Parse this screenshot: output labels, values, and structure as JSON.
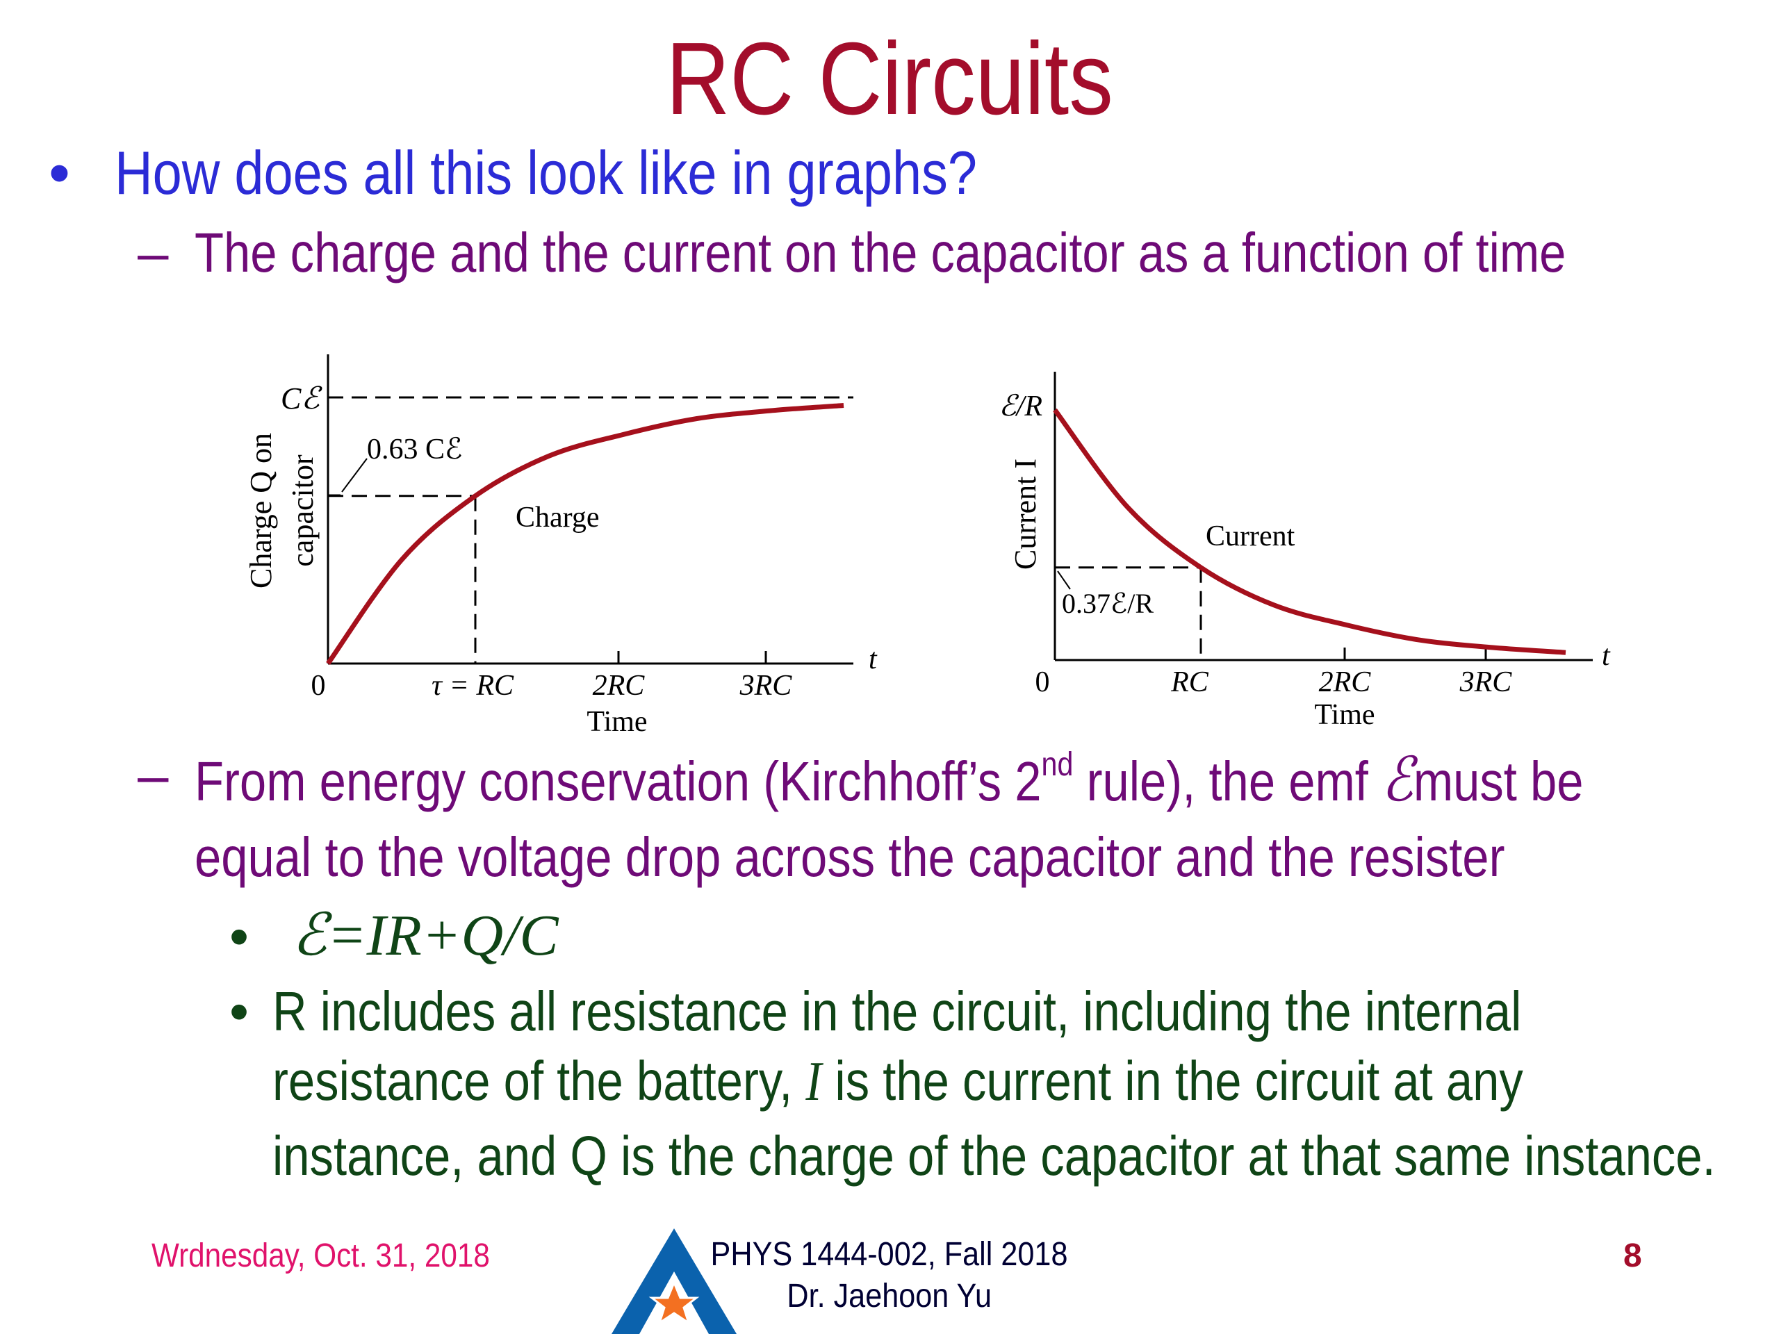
{
  "title": "RC Circuits",
  "bullets": {
    "main": "How does all this look like in graphs?",
    "sub1": "The charge and the current on the capacitor as a function of time",
    "sub2_line1_a": "From energy conservation (Kirchhoff’s 2",
    "sub2_sup": "nd",
    "sub2_line1_b": " rule), the emf ",
    "emf_symbol": "ℰ",
    "sub2_line1_c": "must be",
    "sub2_line2": "equal to the voltage drop across the capacitor and the resister",
    "equation": "ℰ=IR+Q/C",
    "r_line1": "R includes all resistance in the circuit, including the internal",
    "r_line2_a": "resistance of the battery, ",
    "r_line2_i": "I",
    "r_line2_b": " is the current in the circuit at any",
    "r_line3": "instance, and Q is the charge of the capacitor at that same instance."
  },
  "chart_data": [
    {
      "type": "line",
      "series": [
        {
          "name": "Charge",
          "x": [
            0,
            0.5,
            1,
            1.5,
            2,
            2.5,
            3,
            3.5
          ],
          "y": [
            0,
            0.39,
            0.63,
            0.78,
            0.86,
            0.92,
            0.95,
            0.97
          ]
        }
      ],
      "xlabel": "Time",
      "ylabel_line1": "Charge Q on",
      "ylabel_line2": "capacitor",
      "axis_end_label": "t",
      "xticks": [
        "0",
        "τ = RC",
        "2RC",
        "3RC"
      ],
      "yticks": [
        "CℰE",
        "0.63 Cℰ"
      ],
      "annotation": "0.63 Cℰ",
      "asymptote": 1,
      "marker": {
        "x": 1,
        "y": 0.63
      }
    },
    {
      "type": "line",
      "series": [
        {
          "name": "Current",
          "x": [
            0,
            0.5,
            1,
            1.5,
            2,
            2.5,
            3,
            3.5
          ],
          "y": [
            1,
            0.61,
            0.37,
            0.22,
            0.14,
            0.08,
            0.05,
            0.03
          ]
        }
      ],
      "xlabel": "Time",
      "ylabel": "Current I",
      "axis_end_label": "t",
      "xticks": [
        "0",
        "RC",
        "2RC",
        "3RC"
      ],
      "ytop_label": "ℰ/R",
      "annotation": "0.37ℰ/R",
      "marker": {
        "x": 1,
        "y": 0.37
      }
    }
  ],
  "footer": {
    "date": "Wrdnesday, Oct. 31, 2018",
    "course_line1": "PHYS 1444-002, Fall 2018",
    "course_line2": "Dr. Jaehoon Yu",
    "page": "8"
  },
  "colors": {
    "title": "#a30d2b",
    "bullet": "#2b2bd6",
    "sub": "#6e0a77",
    "green": "#0f4416",
    "curve": "#a5101c",
    "date": "#e0126b"
  },
  "logo": "uta-a-star-logo"
}
